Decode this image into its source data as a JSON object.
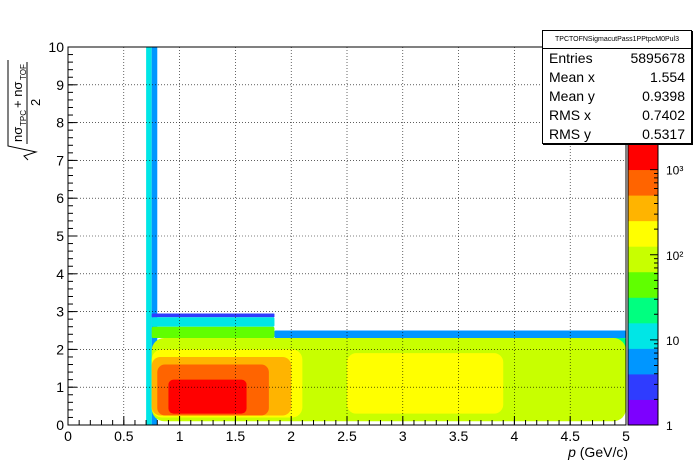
{
  "stats": {
    "title": "TPCTOFNSigmacutPass1PPtpcM0Pul3",
    "rows": [
      {
        "label": "Entries",
        "value": "5895678"
      },
      {
        "label": "Mean x",
        "value": "1.554"
      },
      {
        "label": "Mean y",
        "value": "0.9398"
      },
      {
        "label": "RMS x",
        "value": "0.7402"
      },
      {
        "label": "RMS y",
        "value": "0.5317"
      }
    ]
  },
  "chart_data": {
    "type": "heatmap",
    "xlabel_var": "p",
    "xlabel_unit": "(GeV/c)",
    "ylabel": "√((nσ_TPC + nσ_TOF)/2)",
    "xlim": [
      0,
      5
    ],
    "ylim": [
      0,
      10
    ],
    "x_ticks": [
      "0",
      "0.5",
      "1",
      "1.5",
      "2",
      "2.5",
      "3",
      "3.5",
      "4",
      "4.5",
      "5"
    ],
    "y_ticks": [
      "0",
      "1",
      "2",
      "3",
      "4",
      "5",
      "6",
      "7",
      "8",
      "9",
      "10"
    ],
    "z_scale": "log",
    "z_ticks": [
      "1",
      "10",
      "10²",
      "10³"
    ],
    "grid": true,
    "palette": [
      "#7d00ff",
      "#2f3cff",
      "#0096ff",
      "#00e6e6",
      "#00ff80",
      "#60ff00",
      "#c8ff00",
      "#ffff00",
      "#ffb400",
      "#ff6400",
      "#ff0000"
    ],
    "regions": [
      {
        "x": [
          0.7,
          0.75
        ],
        "y": [
          0,
          10
        ],
        "level": 3
      },
      {
        "x": [
          0.75,
          0.8
        ],
        "y": [
          0,
          10
        ],
        "level": 2
      },
      {
        "x": [
          0.75,
          1.85
        ],
        "y": [
          2.85,
          2.95
        ],
        "level": 1
      },
      {
        "x": [
          0.75,
          1.85
        ],
        "y": [
          2.6,
          2.85
        ],
        "level": 3
      },
      {
        "x": [
          0.75,
          1.85
        ],
        "y": [
          2.3,
          2.6
        ],
        "level": 5
      },
      {
        "x": [
          1.85,
          5.0
        ],
        "y": [
          2.3,
          2.5
        ],
        "level": 2
      },
      {
        "x": [
          1.85,
          5.0
        ],
        "y": [
          2.0,
          2.3
        ],
        "level": 4
      },
      {
        "x": [
          0.75,
          5.0
        ],
        "y": [
          0.1,
          2.3
        ],
        "level": 6
      },
      {
        "x": [
          2.5,
          3.9
        ],
        "y": [
          0.3,
          1.9
        ],
        "level": 7
      },
      {
        "x": [
          0.75,
          2.1
        ],
        "y": [
          0.2,
          2.0
        ],
        "level": 7
      },
      {
        "x": [
          0.75,
          2.0
        ],
        "y": [
          0.25,
          1.8
        ],
        "level": 8
      },
      {
        "x": [
          0.8,
          1.8
        ],
        "y": [
          0.25,
          1.6
        ],
        "level": 9
      },
      {
        "x": [
          0.9,
          1.6
        ],
        "y": [
          0.3,
          1.2
        ],
        "level": 10
      }
    ]
  }
}
